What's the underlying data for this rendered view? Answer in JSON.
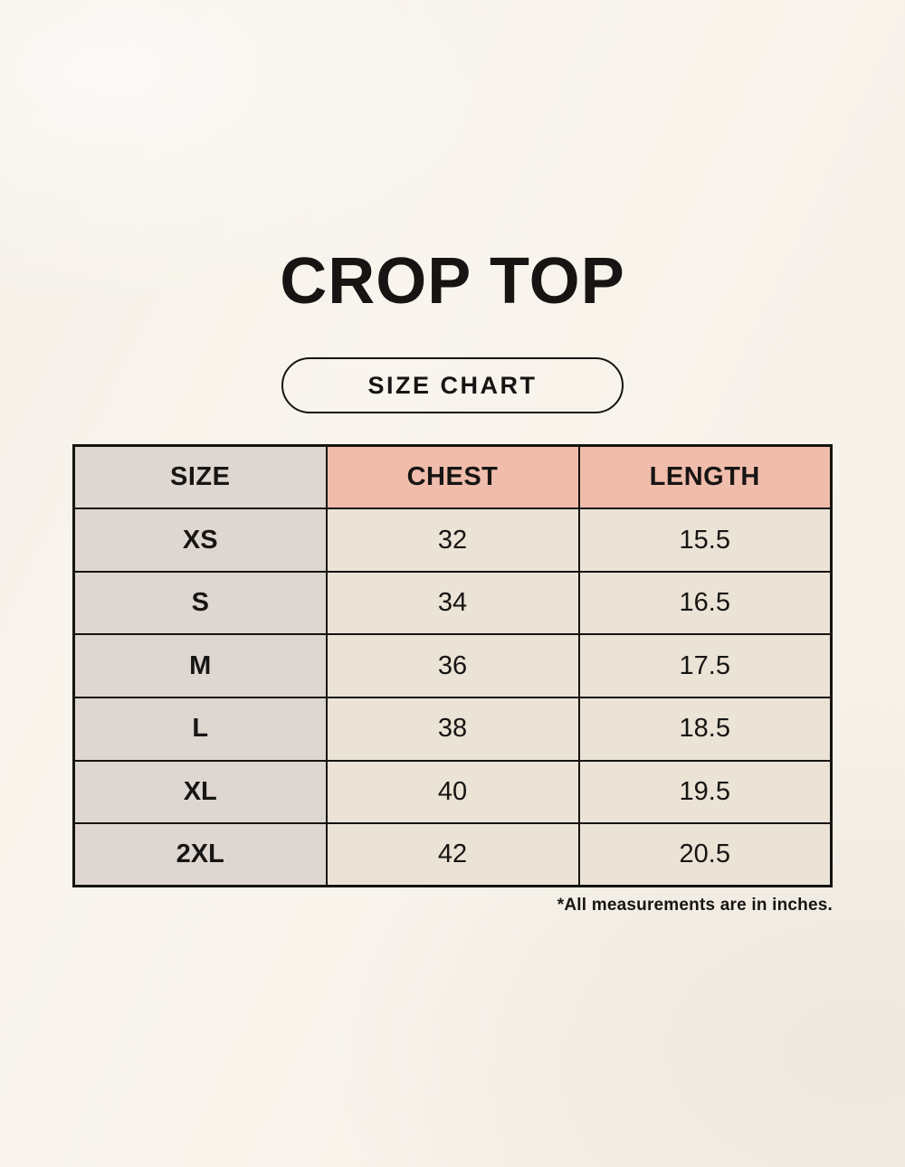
{
  "page": {
    "title": "CROP TOP",
    "badge_label": "SIZE CHART",
    "footnote": "*All measurements are in inches."
  },
  "colors": {
    "background": "#f9f5ee",
    "header_accent": "#f0bcab",
    "size_column": "#ded6d0",
    "value_cell": "#eae3d6",
    "border_and_text": "#15130f"
  },
  "chart_data": {
    "type": "table",
    "title": "CROP TOP",
    "subtitle": "SIZE CHART",
    "columns": [
      "SIZE",
      "CHEST",
      "LENGTH"
    ],
    "rows": [
      [
        "XS",
        "32",
        "15.5"
      ],
      [
        "S",
        "34",
        "16.5"
      ],
      [
        "M",
        "36",
        "17.5"
      ],
      [
        "L",
        "38",
        "18.5"
      ],
      [
        "XL",
        "40",
        "19.5"
      ],
      [
        "2XL",
        "42",
        "20.5"
      ]
    ],
    "footnote": "*All measurements are in inches.",
    "units": "inches"
  }
}
